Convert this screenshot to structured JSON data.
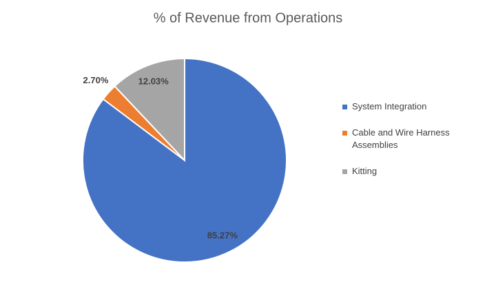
{
  "chart_data": {
    "type": "pie",
    "title": "% of Revenue from Operations",
    "categories": [
      "System Integration",
      "Cable and Wire Harness Assemblies",
      "Kitting"
    ],
    "values": [
      85.27,
      2.7,
      12.03
    ],
    "value_labels": [
      "85.27%",
      "2.70%",
      "12.03%"
    ],
    "colors": [
      "#4472c4",
      "#ed7d31",
      "#a5a5a5"
    ],
    "legend": "right"
  }
}
